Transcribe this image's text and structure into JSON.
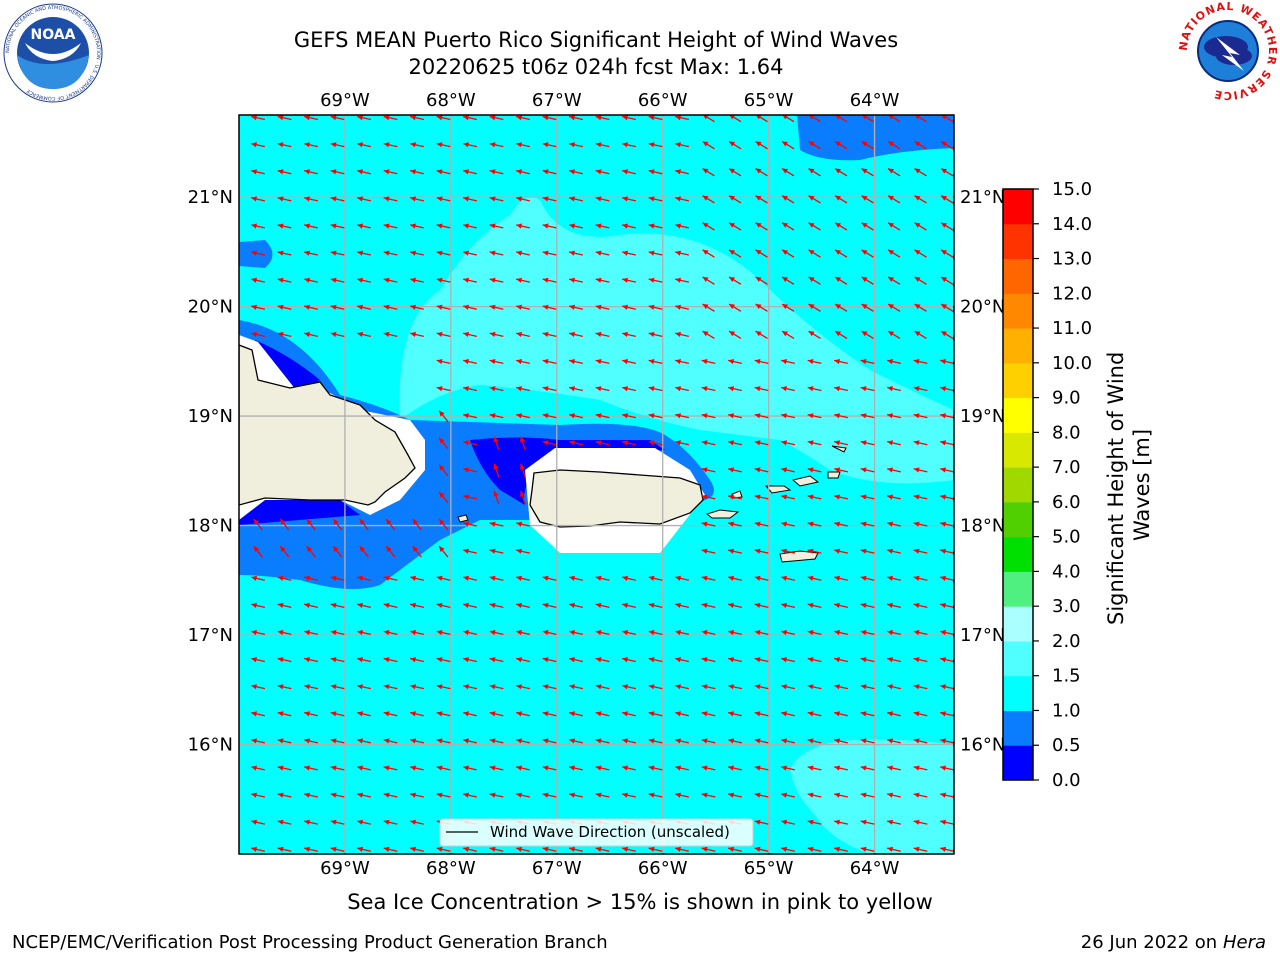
{
  "header": {
    "title_line1": "GEFS MEAN Puerto Rico Significant Height of Wind Waves",
    "title_line2": "20220625 t06z 024h fcst   Max: 1.64"
  },
  "map": {
    "lon_ticks": [
      "69°W",
      "68°W",
      "67°W",
      "66°W",
      "65°W",
      "64°W"
    ],
    "lat_ticks": [
      "21°N",
      "20°N",
      "19°N",
      "18°N",
      "17°N",
      "16°N"
    ],
    "lon_values": [
      -69,
      -68,
      -67,
      -66,
      -65,
      -64
    ],
    "lat_values": [
      21,
      20,
      19,
      18,
      17,
      16
    ],
    "extent": {
      "lon_min": -70,
      "lon_max": -63.25,
      "lat_min": 15.0,
      "lat_max": 21.75
    },
    "legend_label": "Wind Wave Direction (unscaled)",
    "ocean_color": "#00ffff",
    "land_color": "#f0eedc",
    "arrow_color": "#ff0000"
  },
  "colorbar": {
    "label": "Significant Height of Wind Waves [m]",
    "ticks": [
      "0.0",
      "0.5",
      "1.0",
      "1.5",
      "2.0",
      "3.0",
      "4.0",
      "5.0",
      "6.0",
      "7.0",
      "8.0",
      "9.0",
      "10.0",
      "11.0",
      "12.0",
      "13.0",
      "14.0",
      "15.0"
    ],
    "colors": [
      "#0000ff",
      "#0a7dff",
      "#00ffff",
      "#50ffff",
      "#aaffff",
      "#50f080",
      "#00e000",
      "#50d000",
      "#a0d800",
      "#d8e800",
      "#ffff00",
      "#ffd000",
      "#ffb000",
      "#ff8800",
      "#ff6600",
      "#ff3300",
      "#ff0000"
    ]
  },
  "notes": {
    "ice": "Sea Ice Concentration > 15% is shown in pink to yellow"
  },
  "footer": {
    "left": "NCEP/EMC/Verification Post Processing Product Generation Branch",
    "right_date": "26 Jun 2022 on",
    "right_host": "Hera"
  },
  "logos": {
    "noaa": "NOAA",
    "noaa_ring": "NATIONAL OCEANIC AND ATMOSPHERIC ADMINISTRATION · U.S. DEPARTMENT OF COMMERCE",
    "nws_ring": "NATIONAL WEATHER SERVICE"
  }
}
